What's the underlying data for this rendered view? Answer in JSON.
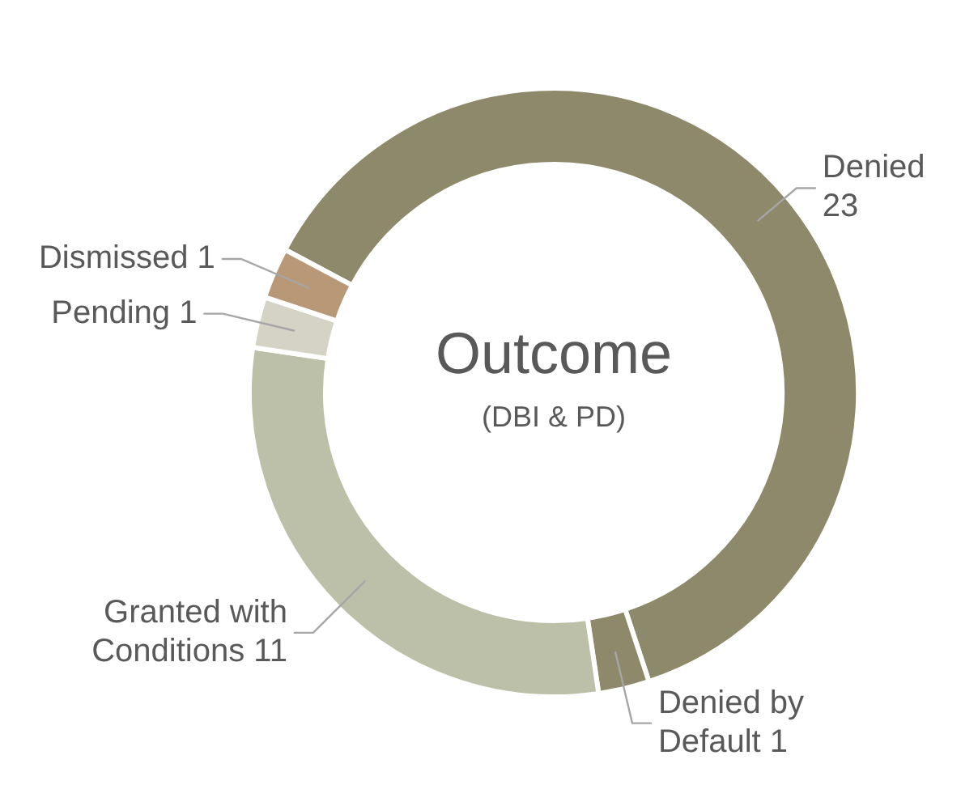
{
  "chart_data": {
    "type": "donut",
    "title": "Outcome",
    "subtitle": "(DBI & PD)",
    "categories": [
      "Denied",
      "Denied by Default",
      "Granted with Conditions",
      "Pending",
      "Dismissed"
    ],
    "values": [
      23,
      1,
      11,
      1,
      1
    ],
    "colors": [
      "#8e896b",
      "#8e896b",
      "#bcc0a8",
      "#d5d3c6",
      "#b99878"
    ],
    "data_labels": true,
    "legend": false
  }
}
